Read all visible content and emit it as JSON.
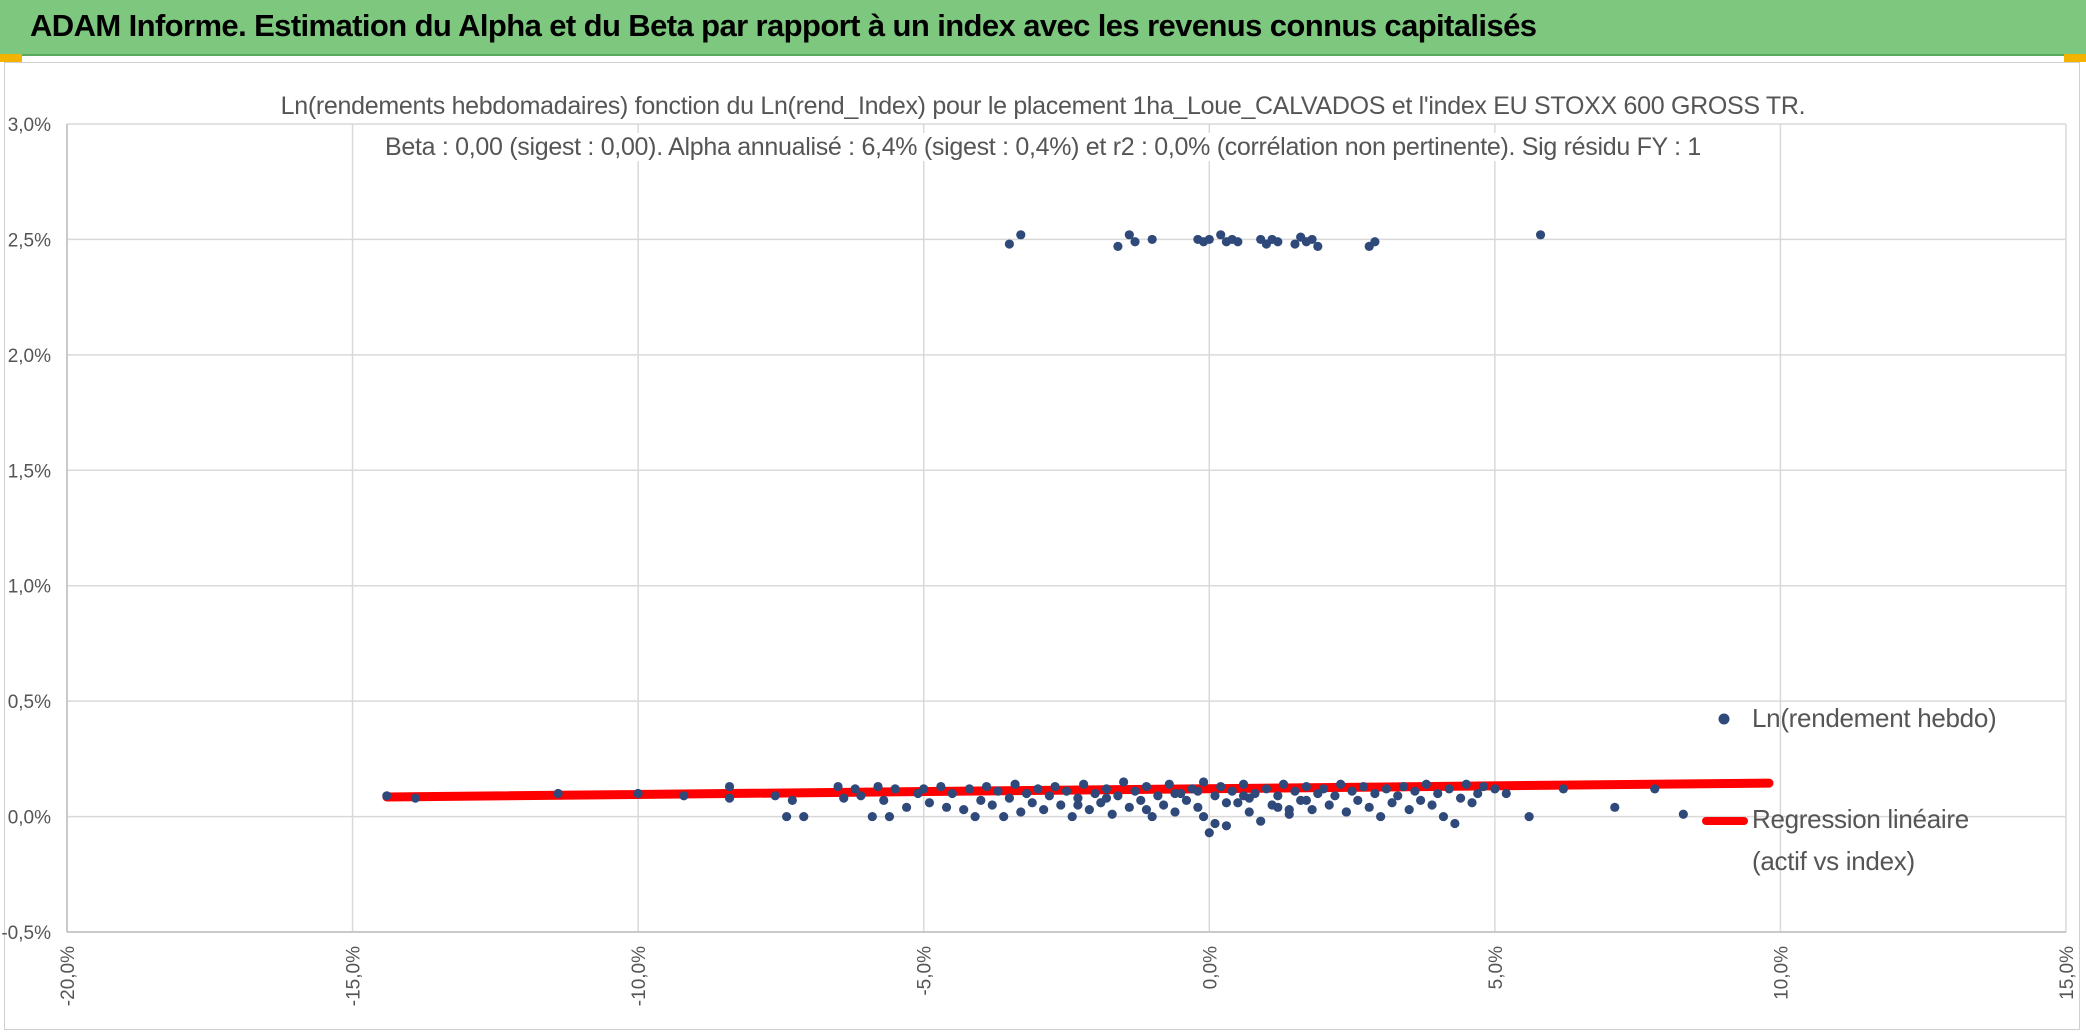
{
  "header": {
    "title": "ADAM Informe. Estimation du Alpha et du Beta par rapport à un index avec les revenus connus capitalisés"
  },
  "colors": {
    "header_bg": "#7dc87e",
    "points": "#2f4a7a",
    "regression": "#ff0000",
    "grid": "#d9d9d9"
  },
  "chart_data": {
    "type": "scatter",
    "title": "Ln(rendements hebdomadaires) fonction du Ln(rend_Index) pour le placement 1ha_Loue_CALVADOS et l'index EU STOXX 600 GROSS TR.",
    "subtitle": "Beta : 0,00 (sigest : 0,00). Alpha annualisé : 6,4% (sigest : 0,4%) et r2 : 0,0% (corrélation non pertinente). Sig résidu FY : 1",
    "xlim": [
      -20,
      15
    ],
    "ylim": [
      -0.5,
      3.0
    ],
    "x_ticks": [
      "-20,0%",
      "-15,0%",
      "-10,0%",
      "-5,0%",
      "0,0%",
      "5,0%",
      "10,0%",
      "15,0%"
    ],
    "y_ticks": [
      "3,0%",
      "2,5%",
      "2,0%",
      "1,5%",
      "1,0%",
      "0,5%",
      "0,0%",
      "-0,5%"
    ],
    "grid": true,
    "legend_position": "right",
    "series": [
      {
        "name": "Ln(rendement hebdo)",
        "type": "scatter",
        "x": [
          -14.4,
          -13.9,
          -11.4,
          -10.0,
          -9.2,
          -8.4,
          -8.4,
          -7.6,
          -7.4,
          -7.3,
          -7.1,
          -6.5,
          -6.4,
          -6.2,
          -6.1,
          -5.9,
          -5.8,
          -5.7,
          -5.6,
          -5.5,
          -5.3,
          -5.1,
          -5.0,
          -4.9,
          -4.7,
          -4.6,
          -4.5,
          -4.3,
          -4.2,
          -4.1,
          -4.0,
          -3.9,
          -3.8,
          -3.7,
          -3.6,
          -3.5,
          -3.4,
          -3.3,
          -3.2,
          -3.1,
          -3.0,
          -2.9,
          -2.8,
          -2.7,
          -2.6,
          -2.5,
          -2.4,
          -2.3,
          -2.2,
          -2.1,
          -2.0,
          -1.9,
          -1.8,
          -1.7,
          -1.6,
          -1.5,
          -1.4,
          -1.3,
          -1.2,
          -1.1,
          -1.0,
          -0.9,
          -0.8,
          -0.7,
          -0.6,
          -0.5,
          -0.4,
          -0.3,
          -0.2,
          -0.1,
          0.0,
          0.1,
          0.2,
          0.3,
          0.4,
          0.5,
          0.6,
          0.7,
          0.8,
          0.9,
          1.0,
          1.1,
          1.2,
          1.3,
          1.4,
          1.5,
          1.6,
          1.7,
          1.8,
          1.9,
          2.0,
          2.1,
          2.2,
          2.3,
          2.4,
          2.5,
          2.6,
          2.7,
          2.8,
          2.9,
          3.0,
          3.1,
          3.2,
          3.3,
          3.4,
          3.5,
          3.6,
          3.7,
          3.8,
          3.9,
          4.0,
          4.1,
          4.2,
          4.3,
          4.4,
          4.5,
          4.6,
          4.7,
          4.8,
          5.0,
          5.2,
          5.6,
          6.2,
          7.1,
          7.8,
          8.3,
          -3.5,
          -3.3,
          -1.6,
          -1.4,
          -1.3,
          -1.0,
          -0.2,
          -0.1,
          0.0,
          0.2,
          0.3,
          0.4,
          0.5,
          0.9,
          1.0,
          1.1,
          1.2,
          1.5,
          1.6,
          1.7,
          1.8,
          1.9,
          2.8,
          2.9,
          5.8,
          -2.3,
          -1.8,
          -1.1,
          -0.6,
          -0.1,
          0.3,
          0.6,
          1.2,
          1.7,
          2.4,
          -0.2,
          0.1,
          0.7,
          1.4
        ],
        "y": [
          0.09,
          0.08,
          0.1,
          0.1,
          0.09,
          0.13,
          0.08,
          0.09,
          0.0,
          0.07,
          0.0,
          0.13,
          0.08,
          0.12,
          0.09,
          0.0,
          0.13,
          0.07,
          0.0,
          0.12,
          0.04,
          0.1,
          0.12,
          0.06,
          0.13,
          0.04,
          0.1,
          0.03,
          0.12,
          0.0,
          0.07,
          0.13,
          0.05,
          0.11,
          0.0,
          0.08,
          0.14,
          0.02,
          0.1,
          0.06,
          0.12,
          0.03,
          0.09,
          0.13,
          0.05,
          0.11,
          0.0,
          0.08,
          0.14,
          0.03,
          0.1,
          0.06,
          0.12,
          0.01,
          0.09,
          0.15,
          0.04,
          0.11,
          0.07,
          0.13,
          0.0,
          0.09,
          0.05,
          0.14,
          0.02,
          0.1,
          0.07,
          0.12,
          0.04,
          0.15,
          -0.07,
          0.09,
          0.13,
          -0.04,
          0.11,
          0.06,
          0.14,
          0.02,
          0.1,
          -0.02,
          0.12,
          0.05,
          0.09,
          0.14,
          0.01,
          0.11,
          0.07,
          0.13,
          0.03,
          0.1,
          0.12,
          0.05,
          0.09,
          0.14,
          0.02,
          0.11,
          0.07,
          0.13,
          0.04,
          0.1,
          0.0,
          0.12,
          0.06,
          0.09,
          0.13,
          0.03,
          0.11,
          0.07,
          0.14,
          0.05,
          0.1,
          0.0,
          0.12,
          -0.03,
          0.08,
          0.14,
          0.06,
          0.1,
          0.13,
          0.12,
          0.1,
          0.0,
          0.12,
          0.04,
          0.12,
          0.01,
          2.48,
          2.52,
          2.47,
          2.52,
          2.49,
          2.5,
          2.5,
          2.49,
          2.5,
          2.52,
          2.49,
          2.5,
          2.49,
          2.5,
          2.48,
          2.5,
          2.49,
          2.48,
          2.51,
          2.49,
          2.5,
          2.47,
          2.47,
          2.49,
          2.52,
          0.05,
          0.08,
          0.03,
          0.1,
          0.0,
          0.06,
          0.09,
          0.04,
          0.07,
          0.02,
          0.11,
          -0.03,
          0.08,
          0.03
        ]
      },
      {
        "name": "Regression linéaire (actif vs index)",
        "type": "line",
        "x": [
          -14.4,
          9.8
        ],
        "y": [
          0.085,
          0.145
        ]
      }
    ],
    "legend": [
      "Ln(rendement hebdo)",
      "Regression linéaire",
      "(actif vs index)"
    ]
  }
}
